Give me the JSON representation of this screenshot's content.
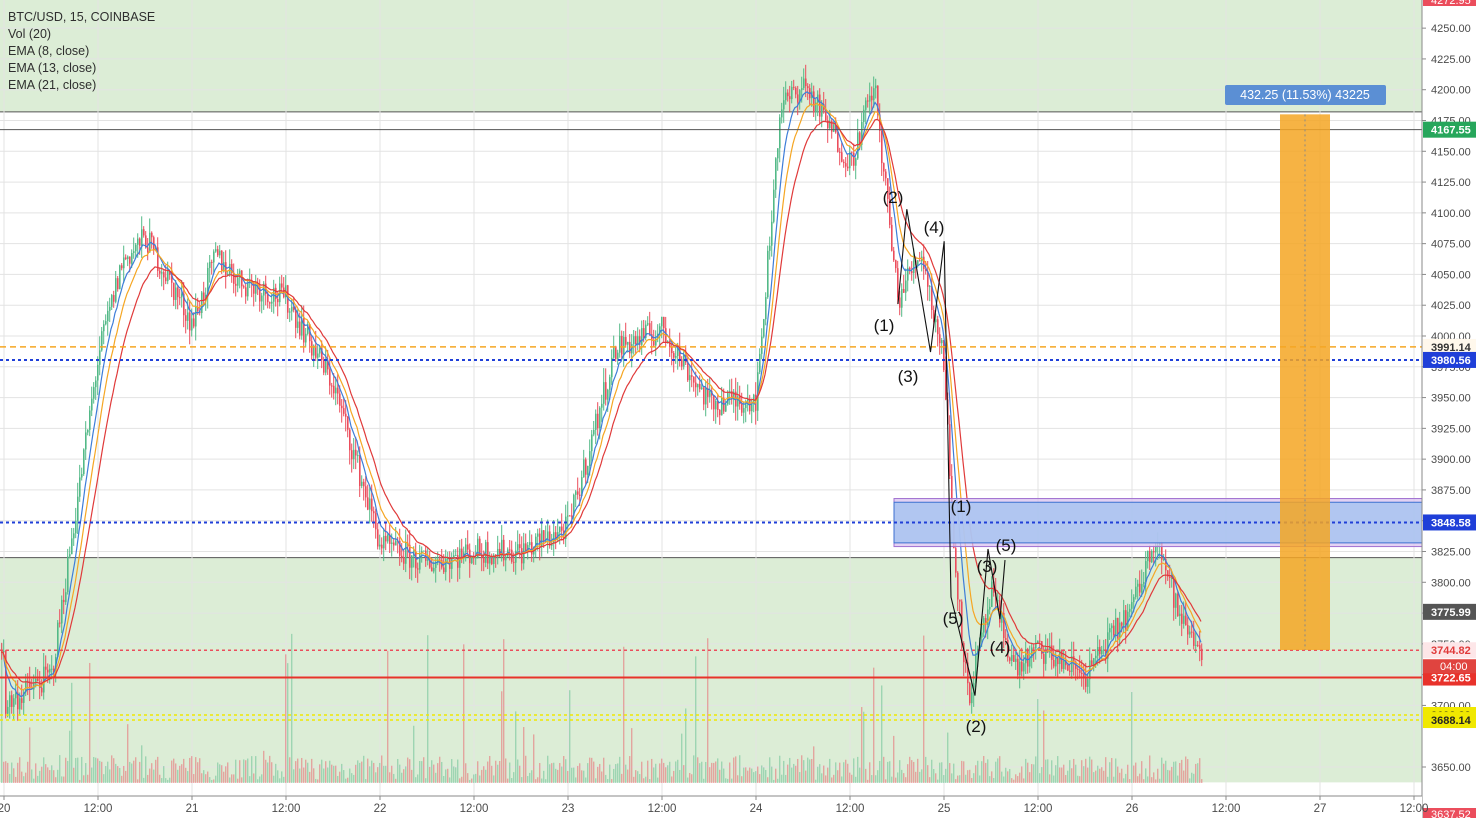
{
  "legend": {
    "symbol": "BTC/USD, 15, COINBASE",
    "indicators": [
      "Vol (20)",
      "EMA (8, close)",
      "EMA (13, close)",
      "EMA (21, close)"
    ]
  },
  "colors": {
    "up": "#53b987",
    "down": "#eb4d5c",
    "ema8": "#3d7dd8",
    "ema13": "#f5a623",
    "ema21": "#e03a3a",
    "zone_green": "#dcedd6",
    "box_blue": "#a8c4f0",
    "box_purple": "#d9c3ef",
    "measure_orange": "#f5a623",
    "measure_label": "#5b8fd4",
    "axis_text": "#4a4a4a"
  },
  "measure_label": "432.25 (11.53%) 43225",
  "time_axis": [
    "20",
    "12:00",
    "21",
    "12:00",
    "22",
    "12:00",
    "23",
    "12:00",
    "24",
    "12:00",
    "25",
    "12:00",
    "26",
    "12:00",
    "27",
    "12:00"
  ],
  "wave_labels": [
    "(1)",
    "(2)",
    "(3)",
    "(4)",
    "(1)",
    "(5)",
    "(3)",
    "(5)",
    "(4)",
    "(2)"
  ],
  "chart_data": {
    "type": "line",
    "title": "BTC/USD, 15, COINBASE",
    "xlabel": "",
    "ylabel": "",
    "ylim": [
      3637.52,
      4272.95
    ],
    "y_ticks": [
      3650,
      3700,
      3725,
      3750,
      3775,
      3800,
      3825,
      3850,
      3875,
      3900,
      3925,
      3950,
      3975,
      4000,
      4025,
      4050,
      4075,
      4100,
      4125,
      4150,
      4175,
      4200,
      4225,
      4250
    ],
    "y_tick_labels": [
      "3650.00",
      "3700.00",
      "3725.00",
      "3750.00",
      "3775.00",
      "3800.00",
      "3825.00",
      "3850.00",
      "3875.00",
      "3900.00",
      "3925.00",
      "3950.00",
      "3975.00",
      "4000.00",
      "4025.00",
      "4050.00",
      "4075.00",
      "4100.00",
      "4125.00",
      "4150.00",
      "4175.00",
      "4200.00",
      "4225.00",
      "4250.00"
    ],
    "edge_labels": [
      "4272.95",
      "3637.52"
    ],
    "x_range": [
      "20",
      "27 12:00"
    ],
    "grid": true,
    "series": [
      {
        "name": "BTC/USD",
        "x": [
          "20 00:00",
          "20 06:00",
          "20 12:00",
          "20 15:00",
          "20 18:00",
          "21 00:00",
          "21 03:00",
          "21 06:00",
          "21 12:00",
          "21 18:00",
          "22 00:00",
          "22 06:00",
          "22 12:00",
          "22 18:00",
          "23 00:00",
          "23 06:00",
          "23 12:00",
          "23 18:00",
          "24 00:00",
          "24 03:00",
          "24 06:00",
          "24 12:00",
          "24 15:00",
          "24 18:00",
          "24 21:00",
          "25 00:00",
          "25 01:00",
          "25 03:00",
          "25 06:00",
          "25 09:00",
          "25 12:00",
          "25 18:00",
          "26 00:00",
          "26 03:00",
          "26 06:00",
          "26 09:00"
        ],
        "values": [
          3700,
          3725,
          3985,
          4060,
          4080,
          4010,
          4065,
          4045,
          4030,
          3960,
          3830,
          3815,
          3825,
          3825,
          3845,
          3990,
          4005,
          3945,
          3950,
          4185,
          4205,
          4140,
          4205,
          4030,
          4070,
          3975,
          3840,
          3705,
          3790,
          3730,
          3745,
          3725,
          3780,
          3840,
          3770,
          3745
        ]
      }
    ],
    "price_levels": [
      {
        "value": 4167.55,
        "label": "4167.55",
        "color": "#26a65b",
        "style": "solid"
      },
      {
        "value": 3991.14,
        "label": "3991.14",
        "color": "#f5a623",
        "style": "dashed"
      },
      {
        "value": 3980.56,
        "label": "3980.56",
        "color": "#1f3fd8",
        "style": "dotted"
      },
      {
        "value": 3848.58,
        "label": "3848.58",
        "color": "#1f3fd8",
        "style": "dotted"
      },
      {
        "value": 3775.99,
        "label": "3775.99",
        "color": "#555555",
        "style": "none"
      },
      {
        "value": 3744.82,
        "label": "3744.82",
        "color": "#eb4d5c",
        "style": "dotted"
      },
      {
        "value": 3722.65,
        "label": "3722.65",
        "color": "#e8322b",
        "style": "solid"
      },
      {
        "value": 3692.23,
        "label": "3692.23",
        "color": "#f0e800",
        "style": "dotted"
      },
      {
        "value": 3688.14,
        "label": "3688.14",
        "color": "#f0e800",
        "style": "dotted"
      }
    ],
    "countdown_label": "04:00",
    "zones": [
      {
        "name": "resistance",
        "from": 4182,
        "to": 4272.95
      },
      {
        "name": "support",
        "from": 3637.52,
        "to": 3820
      }
    ],
    "measure": {
      "from": 3745,
      "to": 4180,
      "label": "432.25 (11.53%) 43225"
    },
    "box": {
      "from": 3832,
      "to": 3865
    }
  }
}
